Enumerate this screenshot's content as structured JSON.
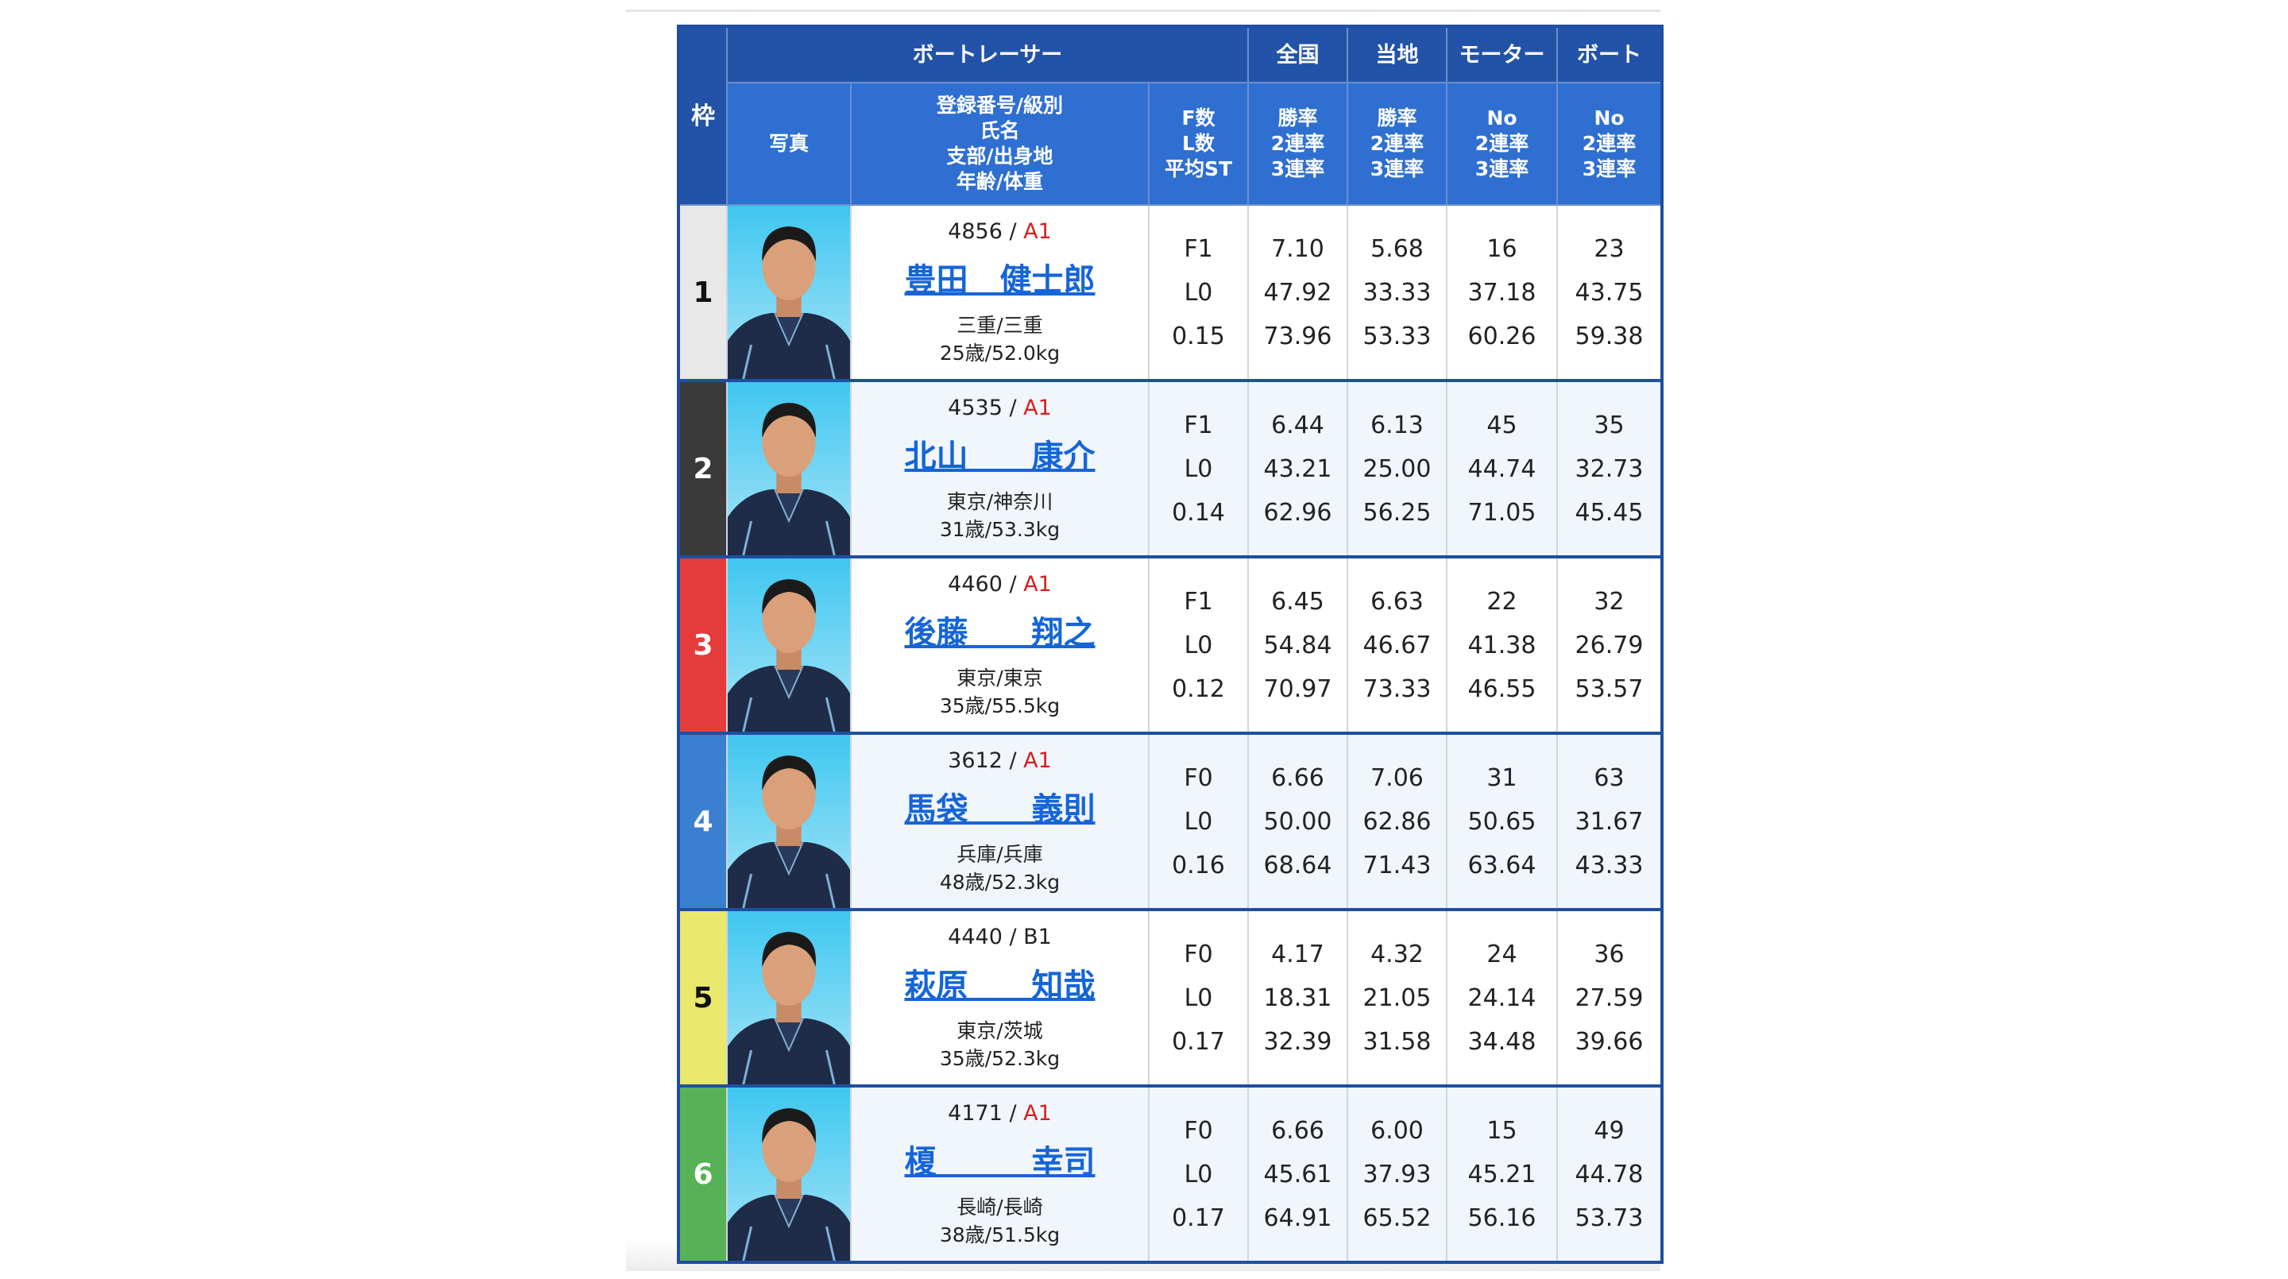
{
  "header": {
    "waku": "枠",
    "racer": "ボートレーサー",
    "national": "全国",
    "local": "当地",
    "motor": "モーター",
    "boat": "ボート",
    "photo": "写真",
    "info": [
      "登録番号/級別",
      "氏名",
      "支部/出身地",
      "年齢/体重"
    ],
    "fl": [
      "F数",
      "L数",
      "平均ST"
    ],
    "national_sub": [
      "勝率",
      "2連率",
      "3連率"
    ],
    "local_sub": [
      "勝率",
      "2連率",
      "3連率"
    ],
    "motor_sub": [
      "No",
      "2連率",
      "3連率"
    ],
    "boat_sub": [
      "No",
      "2連率",
      "3連率"
    ]
  },
  "colors": {
    "header_dark": "#2253a8",
    "header_light": "#2f6fd1",
    "name_link": "#1565d8",
    "class_a": "#d4201e"
  },
  "racers": [
    {
      "waku": "1",
      "waku_color": "#e8e8e8",
      "waku_text": "#111",
      "reg": "4856",
      "cls": "A1",
      "name": "豊田　健士郎",
      "branch": "三重/三重",
      "age_weight": "25歳/52.0kg",
      "f": "F1",
      "l": "L0",
      "st": "0.15",
      "nat": [
        "7.10",
        "47.92",
        "73.96"
      ],
      "loc": [
        "5.68",
        "33.33",
        "53.33"
      ],
      "motor": [
        "16",
        "37.18",
        "60.26"
      ],
      "boat": [
        "23",
        "43.75",
        "59.38"
      ]
    },
    {
      "waku": "2",
      "waku_color": "#3a3a3a",
      "waku_text": "#fff",
      "reg": "4535",
      "cls": "A1",
      "name": "北山　　康介",
      "branch": "東京/神奈川",
      "age_weight": "31歳/53.3kg",
      "f": "F1",
      "l": "L0",
      "st": "0.14",
      "nat": [
        "6.44",
        "43.21",
        "62.96"
      ],
      "loc": [
        "6.13",
        "25.00",
        "56.25"
      ],
      "motor": [
        "45",
        "44.74",
        "71.05"
      ],
      "boat": [
        "35",
        "32.73",
        "45.45"
      ]
    },
    {
      "waku": "3",
      "waku_color": "#e63b3b",
      "waku_text": "#fff",
      "reg": "4460",
      "cls": "A1",
      "name": "後藤　　翔之",
      "branch": "東京/東京",
      "age_weight": "35歳/55.5kg",
      "f": "F1",
      "l": "L0",
      "st": "0.12",
      "nat": [
        "6.45",
        "54.84",
        "70.97"
      ],
      "loc": [
        "6.63",
        "46.67",
        "73.33"
      ],
      "motor": [
        "22",
        "41.38",
        "46.55"
      ],
      "boat": [
        "32",
        "26.79",
        "53.57"
      ]
    },
    {
      "waku": "4",
      "waku_color": "#3b7fd0",
      "waku_text": "#fff",
      "reg": "3612",
      "cls": "A1",
      "name": "馬袋　　義則",
      "branch": "兵庫/兵庫",
      "age_weight": "48歳/52.3kg",
      "f": "F0",
      "l": "L0",
      "st": "0.16",
      "nat": [
        "6.66",
        "50.00",
        "68.64"
      ],
      "loc": [
        "7.06",
        "62.86",
        "71.43"
      ],
      "motor": [
        "31",
        "50.65",
        "63.64"
      ],
      "boat": [
        "63",
        "31.67",
        "43.33"
      ]
    },
    {
      "waku": "5",
      "waku_color": "#e9e86c",
      "waku_text": "#111",
      "reg": "4440",
      "cls": "B1",
      "name": "萩原　　知哉",
      "branch": "東京/茨城",
      "age_weight": "35歳/52.3kg",
      "f": "F0",
      "l": "L0",
      "st": "0.17",
      "nat": [
        "4.17",
        "18.31",
        "32.39"
      ],
      "loc": [
        "4.32",
        "21.05",
        "31.58"
      ],
      "motor": [
        "24",
        "24.14",
        "34.48"
      ],
      "boat": [
        "36",
        "27.59",
        "39.66"
      ]
    },
    {
      "waku": "6",
      "waku_color": "#57b257",
      "waku_text": "#fff",
      "reg": "4171",
      "cls": "A1",
      "name": "榎　　　幸司",
      "branch": "長崎/長崎",
      "age_weight": "38歳/51.5kg",
      "f": "F0",
      "l": "L0",
      "st": "0.17",
      "nat": [
        "6.66",
        "45.61",
        "64.91"
      ],
      "loc": [
        "6.00",
        "37.93",
        "65.52"
      ],
      "motor": [
        "15",
        "45.21",
        "56.16"
      ],
      "boat": [
        "49",
        "44.78",
        "53.73"
      ]
    }
  ]
}
